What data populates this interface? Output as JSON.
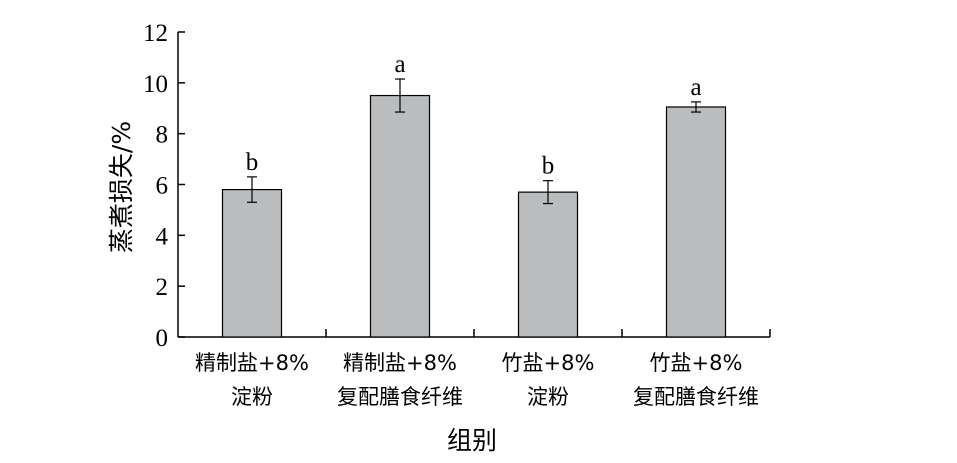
{
  "chart_data": {
    "type": "bar",
    "title": "",
    "xlabel": "组别",
    "ylabel": "蒸煮损失/%",
    "ylim": [
      0,
      12
    ],
    "yticks": [
      "0",
      "2",
      "4",
      "6",
      "8",
      "10",
      "12"
    ],
    "categories": [
      [
        "精制盐+8%",
        "淀粉"
      ],
      [
        "精制盐+8%",
        "复配膳食纤维"
      ],
      [
        "竹盐+8%",
        "淀粉"
      ],
      [
        "竹盐+8%",
        "复配膳食纤维"
      ]
    ],
    "values": [
      5.8,
      9.5,
      5.7,
      9.05
    ],
    "errors": [
      0.5,
      0.65,
      0.45,
      0.2
    ],
    "significance": [
      "b",
      "a",
      "b",
      "a"
    ],
    "grid": false,
    "bar_color": "#babcbe"
  }
}
